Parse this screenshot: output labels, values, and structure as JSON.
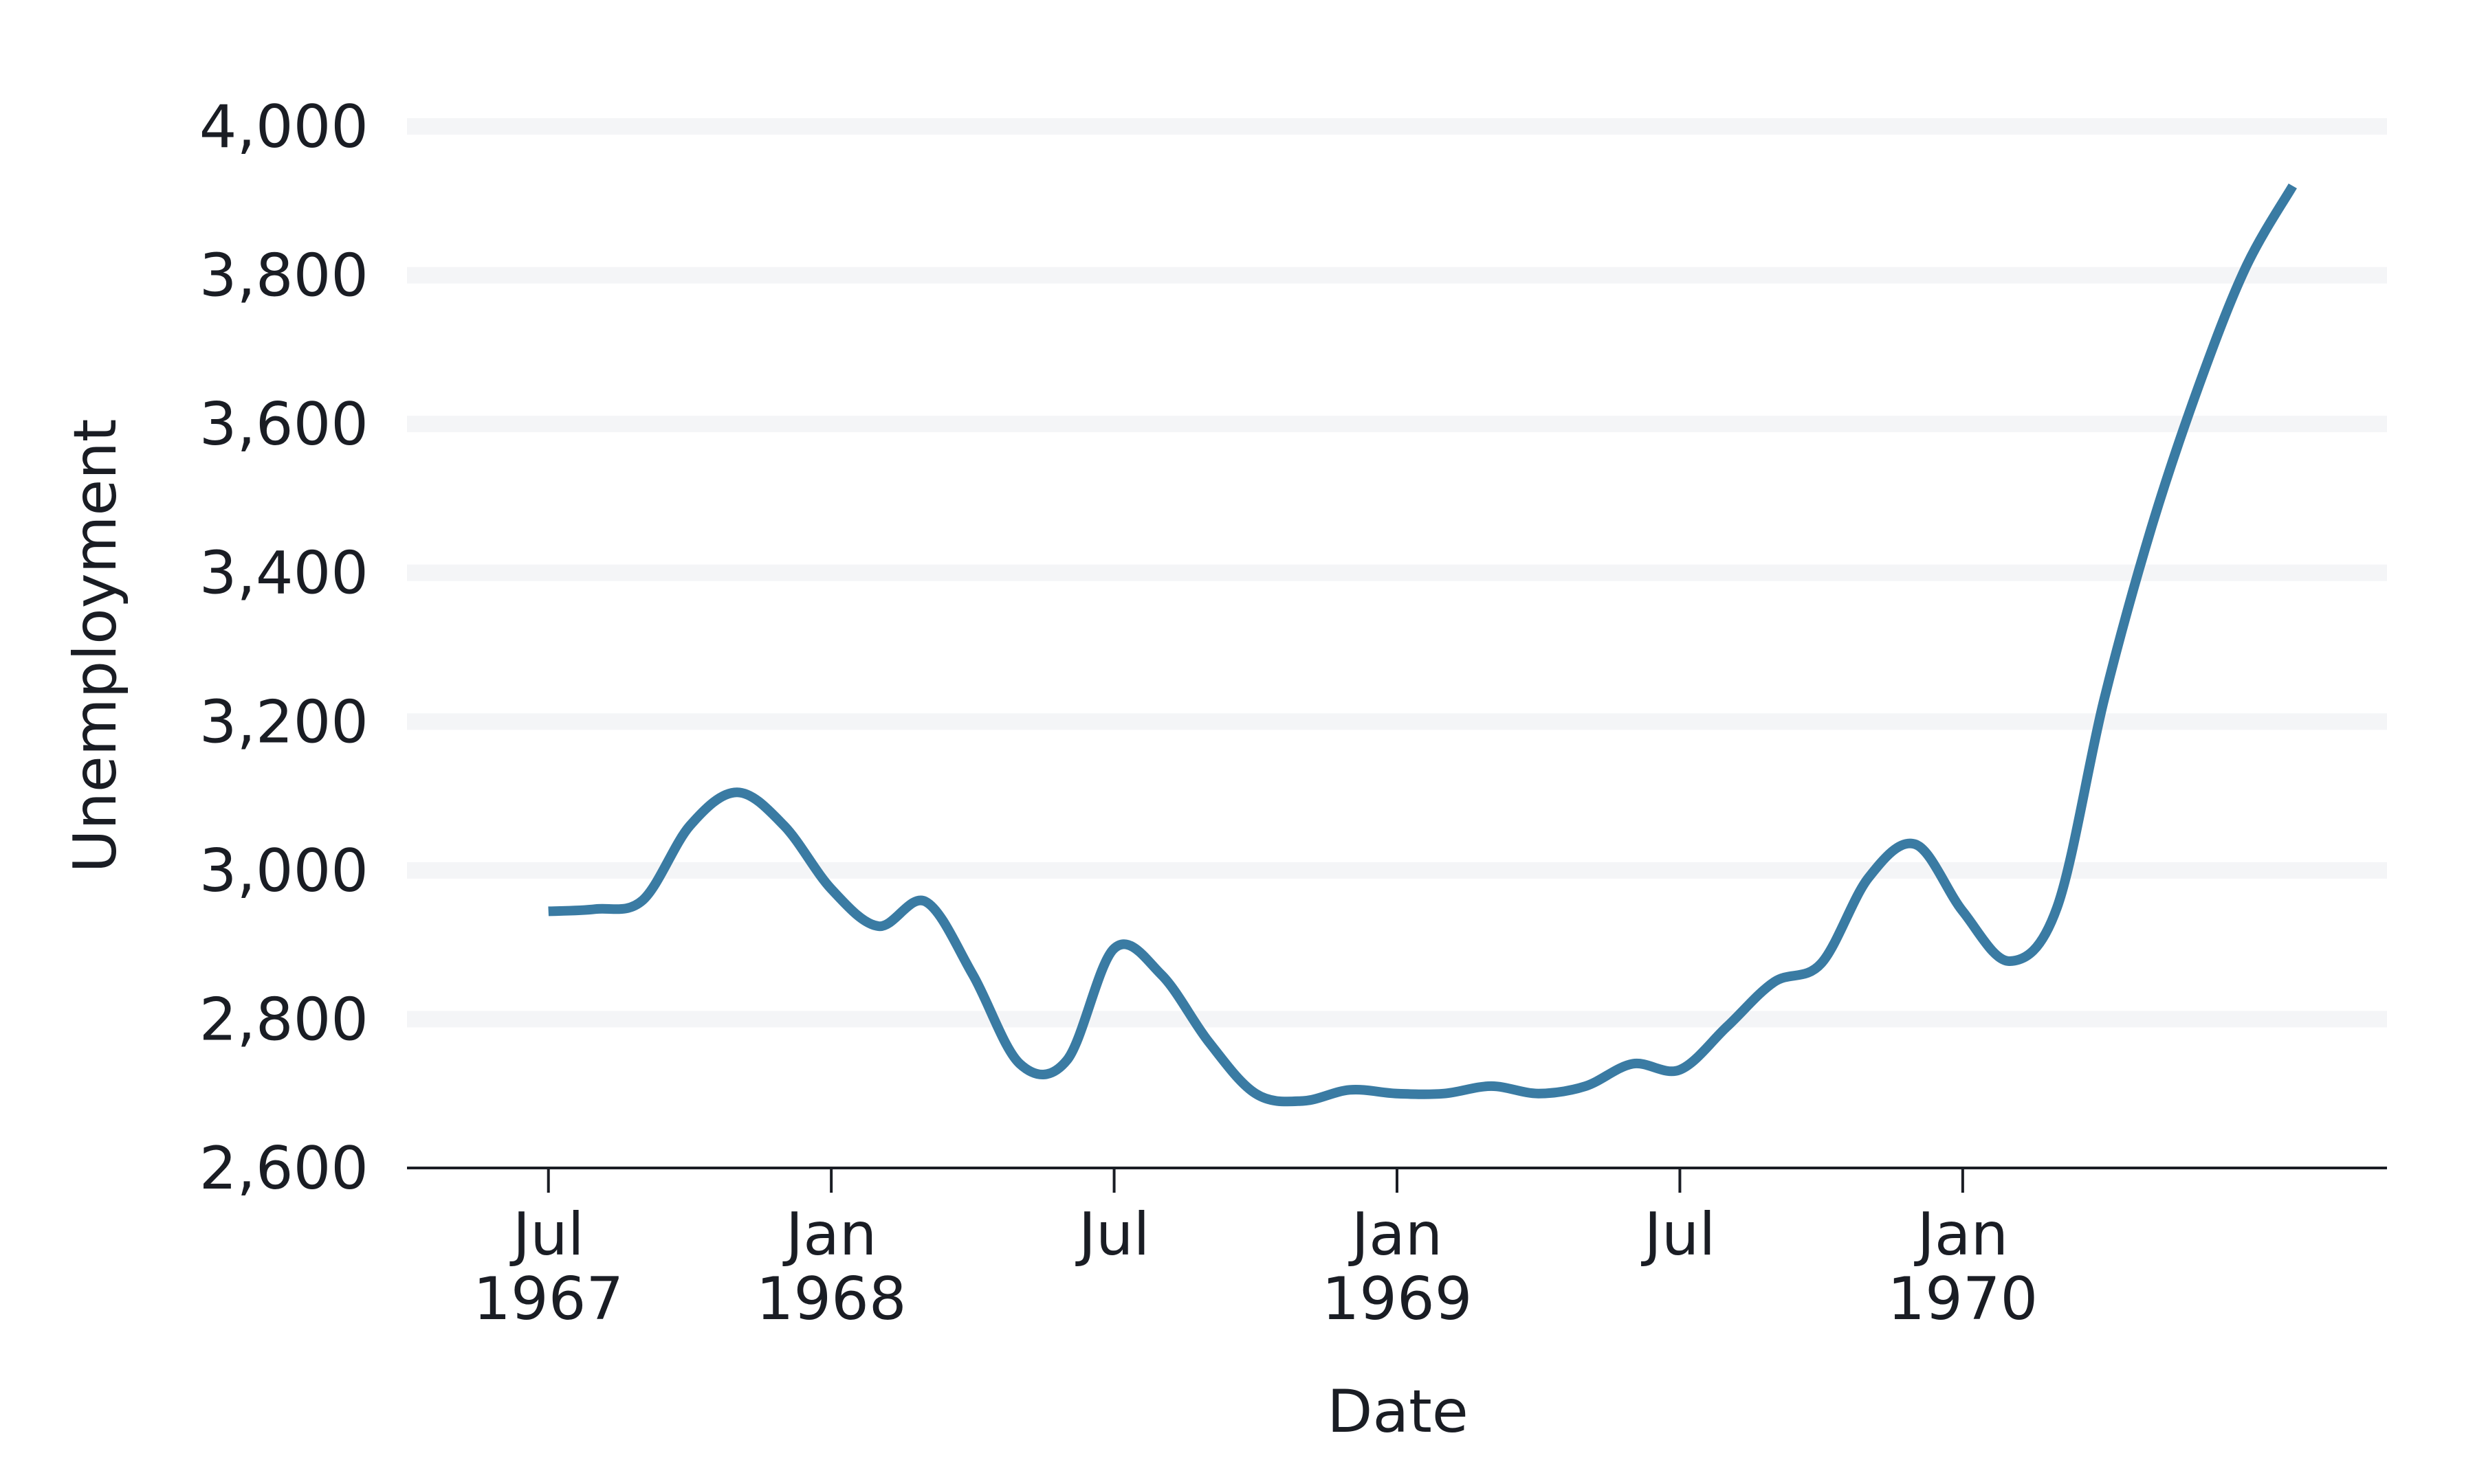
{
  "chart_data": {
    "type": "line",
    "xlabel": "Date",
    "ylabel": "Unemployment",
    "ylim": [
      2600,
      4000
    ],
    "xlim": [
      "1967-04",
      "1970-10"
    ],
    "yticks": [
      {
        "value": 2600,
        "label": "2,600"
      },
      {
        "value": 2800,
        "label": "2,800"
      },
      {
        "value": 3000,
        "label": "3,000"
      },
      {
        "value": 3200,
        "label": "3,200"
      },
      {
        "value": 3400,
        "label": "3,400"
      },
      {
        "value": 3600,
        "label": "3,600"
      },
      {
        "value": 3800,
        "label": "3,800"
      },
      {
        "value": 4000,
        "label": "4,000"
      }
    ],
    "xticks": [
      {
        "date": "1967-07",
        "line1": "Jul",
        "line2": "1967"
      },
      {
        "date": "1968-01",
        "line1": "Jan",
        "line2": "1968"
      },
      {
        "date": "1968-07",
        "line1": "Jul",
        "line2": ""
      },
      {
        "date": "1969-01",
        "line1": "Jan",
        "line2": "1969"
      },
      {
        "date": "1969-07",
        "line1": "Jul",
        "line2": ""
      },
      {
        "date": "1970-01",
        "line1": "Jan",
        "line2": "1970"
      }
    ],
    "grid": {
      "y": true,
      "x": false
    },
    "line_color": "#3a7ba3",
    "grid_color": "#f4f5f7",
    "axis_color": "#1a1d24",
    "x": [
      "1967-07",
      "1967-08",
      "1967-09",
      "1967-10",
      "1967-11",
      "1967-12",
      "1968-01",
      "1968-02",
      "1968-03",
      "1968-04",
      "1968-05",
      "1968-06",
      "1968-07",
      "1968-08",
      "1968-09",
      "1968-10",
      "1968-11",
      "1968-12",
      "1969-01",
      "1969-02",
      "1969-03",
      "1969-04",
      "1969-05",
      "1969-06",
      "1969-07",
      "1969-08",
      "1969-09",
      "1969-10",
      "1969-11",
      "1969-12",
      "1970-01",
      "1970-02",
      "1970-03",
      "1970-04",
      "1970-05",
      "1970-06",
      "1970-07",
      "1970-08"
    ],
    "values": [
      2945,
      2948,
      2960,
      3060,
      3105,
      3060,
      2975,
      2925,
      2958,
      2860,
      2740,
      2745,
      2895,
      2860,
      2770,
      2700,
      2690,
      2705,
      2700,
      2700,
      2710,
      2700,
      2710,
      2740,
      2732,
      2790,
      2850,
      2875,
      2990,
      3035,
      2945,
      2878,
      2950,
      3230,
      3460,
      3650,
      3810,
      3920
    ]
  }
}
